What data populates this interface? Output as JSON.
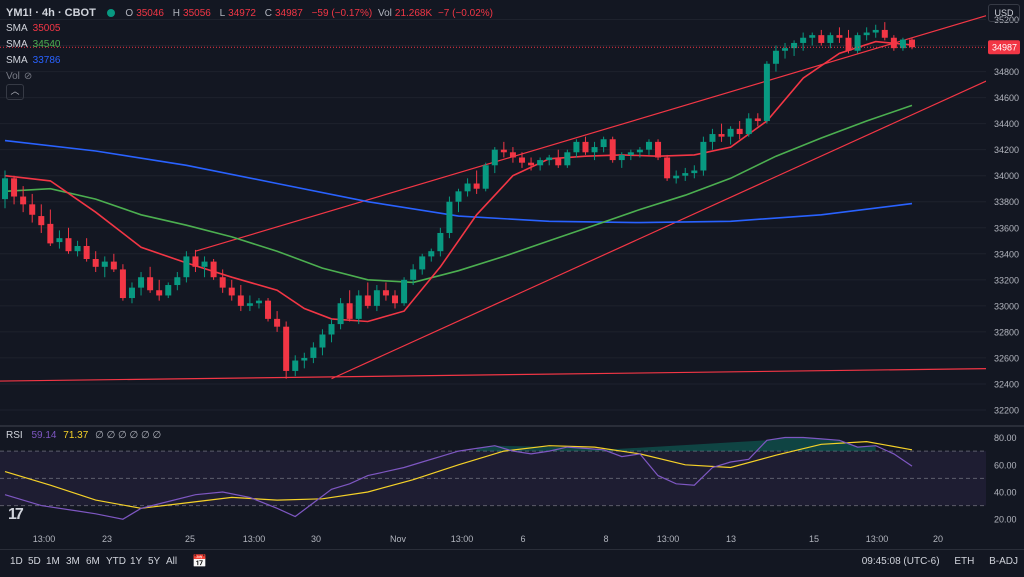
{
  "header": {
    "symbol_title": "YM1! · 4h · CBOT",
    "ohlc": [
      {
        "label": "O",
        "value": "35046"
      },
      {
        "label": "H",
        "value": "35056"
      },
      {
        "label": "L",
        "value": "34972"
      },
      {
        "label": "C",
        "value": "34987"
      }
    ],
    "change": "−59 (−0.17%)",
    "volume_label": "Vol",
    "volume_value": "21.268K",
    "volume_change": "−7 (−0.02%)",
    "collapse_icon": "chevron-up-icon"
  },
  "indicators": [
    {
      "label": "SMA",
      "value": "35005",
      "color": "#f23645"
    },
    {
      "label": "SMA",
      "value": "34540",
      "color": "#4caf50"
    },
    {
      "label": "SMA",
      "value": "33786",
      "color": "#2962ff"
    }
  ],
  "vol_row": {
    "label": "Vol",
    "icon": "eye-off-icon"
  },
  "currency_button": "USD",
  "price_tag": "34987",
  "rsi": {
    "label": "RSI",
    "value1": "59.14",
    "value2": "71.37",
    "extra": "∅ ∅ ∅ ∅ ∅ ∅",
    "axis_ticks": [
      "80.00",
      "60.00",
      "40.00",
      "20.00"
    ],
    "upper_band": 70,
    "lower_band": 30,
    "mid": 50
  },
  "time_labels": [
    "13:00",
    "23",
    "25",
    "13:00",
    "30",
    "Nov",
    "13:00",
    "6",
    "8",
    "13:00",
    "13",
    "15",
    "13:00",
    "20"
  ],
  "bottom_bar": {
    "ranges": [
      "1D",
      "5D",
      "1M",
      "3M",
      "6M",
      "YTD",
      "1Y",
      "5Y",
      "All"
    ],
    "calendar_icon": "calendar-icon",
    "time": "09:45:08 (UTC-6)",
    "session": "ETH",
    "adjust": "B-ADJ"
  },
  "chart_data": {
    "type": "candlestick",
    "y_ticks": [
      "35200",
      "35000",
      "34800",
      "34600",
      "34400",
      "34200",
      "34000",
      "33800",
      "33600",
      "33400",
      "33200",
      "33000",
      "32800",
      "32600",
      "32400",
      "32200"
    ],
    "ylim": [
      32100,
      35350
    ],
    "colors": {
      "up": "#089981",
      "down": "#f23645",
      "sma1": "#f23645",
      "sma2": "#4caf50",
      "sma3": "#2962ff",
      "trend": "#f23645",
      "rsi": "#7e57c2",
      "rsi_ma": "#f5d128"
    },
    "candles": [
      [
        0,
        33820,
        34040,
        33750,
        33980
      ],
      [
        1,
        33980,
        34000,
        33780,
        33840
      ],
      [
        2,
        33840,
        33920,
        33720,
        33780
      ],
      [
        3,
        33780,
        33860,
        33640,
        33700
      ],
      [
        4,
        33690,
        33780,
        33560,
        33620
      ],
      [
        5,
        33630,
        33740,
        33460,
        33480
      ],
      [
        6,
        33490,
        33580,
        33440,
        33520
      ],
      [
        7,
        33520,
        33600,
        33400,
        33420
      ],
      [
        8,
        33420,
        33500,
        33380,
        33460
      ],
      [
        9,
        33460,
        33520,
        33340,
        33360
      ],
      [
        10,
        33360,
        33420,
        33260,
        33300
      ],
      [
        11,
        33300,
        33380,
        33220,
        33340
      ],
      [
        12,
        33340,
        33400,
        33260,
        33280
      ],
      [
        13,
        33280,
        33320,
        33040,
        33060
      ],
      [
        14,
        33060,
        33180,
        33020,
        33140
      ],
      [
        15,
        33140,
        33260,
        33080,
        33220
      ],
      [
        16,
        33220,
        33300,
        33100,
        33120
      ],
      [
        17,
        33120,
        33200,
        33040,
        33080
      ],
      [
        18,
        33080,
        33180,
        33060,
        33160
      ],
      [
        19,
        33160,
        33260,
        33120,
        33220
      ],
      [
        20,
        33220,
        33420,
        33180,
        33380
      ],
      [
        21,
        33380,
        33430,
        33260,
        33300
      ],
      [
        22,
        33300,
        33380,
        33220,
        33340
      ],
      [
        23,
        33340,
        33360,
        33200,
        33220
      ],
      [
        24,
        33220,
        33280,
        33100,
        33140
      ],
      [
        25,
        33140,
        33200,
        33040,
        33080
      ],
      [
        26,
        33080,
        33160,
        32960,
        33000
      ],
      [
        27,
        33000,
        33080,
        32960,
        33020
      ],
      [
        28,
        33020,
        33060,
        32980,
        33040
      ],
      [
        29,
        33040,
        33060,
        32880,
        32900
      ],
      [
        30,
        32900,
        32960,
        32800,
        32840
      ],
      [
        31,
        32840,
        32880,
        32440,
        32500
      ],
      [
        32,
        32500,
        32620,
        32460,
        32580
      ],
      [
        33,
        32580,
        32640,
        32520,
        32600
      ],
      [
        34,
        32600,
        32720,
        32560,
        32680
      ],
      [
        35,
        32680,
        32820,
        32620,
        32780
      ],
      [
        36,
        32780,
        32900,
        32720,
        32860
      ],
      [
        37,
        32860,
        33060,
        32820,
        33020
      ],
      [
        38,
        33020,
        33120,
        32880,
        32900
      ],
      [
        39,
        32900,
        33120,
        32860,
        33080
      ],
      [
        40,
        33080,
        33180,
        32980,
        33000
      ],
      [
        41,
        33000,
        33160,
        32960,
        33120
      ],
      [
        42,
        33120,
        33180,
        33040,
        33080
      ],
      [
        43,
        33080,
        33120,
        32980,
        33020
      ],
      [
        44,
        33020,
        33220,
        33000,
        33200
      ],
      [
        45,
        33200,
        33320,
        33160,
        33280
      ],
      [
        46,
        33280,
        33400,
        33240,
        33380
      ],
      [
        47,
        33380,
        33440,
        33340,
        33420
      ],
      [
        48,
        33420,
        33600,
        33380,
        33560
      ],
      [
        49,
        33560,
        33840,
        33520,
        33800
      ],
      [
        50,
        33800,
        33900,
        33720,
        33880
      ],
      [
        51,
        33880,
        33980,
        33840,
        33940
      ],
      [
        52,
        33940,
        34040,
        33860,
        33900
      ],
      [
        53,
        33900,
        34100,
        33880,
        34080
      ],
      [
        54,
        34080,
        34220,
        34020,
        34200
      ],
      [
        55,
        34200,
        34260,
        34140,
        34180
      ],
      [
        56,
        34180,
        34220,
        34100,
        34140
      ],
      [
        57,
        34140,
        34180,
        34060,
        34100
      ],
      [
        58,
        34100,
        34140,
        34040,
        34080
      ],
      [
        59,
        34080,
        34140,
        34040,
        34120
      ],
      [
        60,
        34120,
        34160,
        34080,
        34140
      ],
      [
        61,
        34140,
        34200,
        34060,
        34080
      ],
      [
        62,
        34080,
        34200,
        34060,
        34180
      ],
      [
        63,
        34180,
        34280,
        34140,
        34260
      ],
      [
        64,
        34260,
        34300,
        34160,
        34180
      ],
      [
        65,
        34180,
        34260,
        34120,
        34220
      ],
      [
        66,
        34220,
        34300,
        34180,
        34280
      ],
      [
        67,
        34280,
        34300,
        34100,
        34120
      ],
      [
        68,
        34120,
        34180,
        34060,
        34160
      ],
      [
        69,
        34160,
        34200,
        34120,
        34180
      ],
      [
        70,
        34180,
        34220,
        34140,
        34200
      ],
      [
        71,
        34200,
        34280,
        34160,
        34260
      ],
      [
        72,
        34260,
        34280,
        34120,
        34140
      ],
      [
        73,
        34140,
        34160,
        33960,
        33980
      ],
      [
        74,
        33980,
        34040,
        33940,
        34000
      ],
      [
        75,
        34000,
        34060,
        33960,
        34020
      ],
      [
        76,
        34020,
        34080,
        33980,
        34040
      ],
      [
        77,
        34040,
        34300,
        34000,
        34260
      ],
      [
        78,
        34260,
        34360,
        34200,
        34320
      ],
      [
        79,
        34320,
        34400,
        34260,
        34300
      ],
      [
        80,
        34300,
        34380,
        34240,
        34360
      ],
      [
        81,
        34360,
        34420,
        34280,
        34320
      ],
      [
        82,
        34320,
        34480,
        34300,
        34440
      ],
      [
        83,
        34440,
        34480,
        34380,
        34420
      ],
      [
        84,
        34420,
        34880,
        34400,
        34860
      ],
      [
        85,
        34860,
        35000,
        34800,
        34960
      ],
      [
        86,
        34960,
        35020,
        34900,
        34980
      ],
      [
        87,
        34980,
        35040,
        34920,
        35020
      ],
      [
        88,
        35020,
        35100,
        34960,
        35060
      ],
      [
        89,
        35060,
        35100,
        35000,
        35080
      ],
      [
        90,
        35080,
        35120,
        35000,
        35020
      ],
      [
        91,
        35020,
        35100,
        34980,
        35080
      ],
      [
        92,
        35080,
        35140,
        35020,
        35060
      ],
      [
        93,
        35060,
        35120,
        34940,
        34960
      ],
      [
        94,
        34960,
        35100,
        34940,
        35080
      ],
      [
        95,
        35080,
        35140,
        35040,
        35100
      ],
      [
        96,
        35100,
        35160,
        35060,
        35120
      ],
      [
        97,
        35120,
        35180,
        35040,
        35060
      ],
      [
        98,
        35060,
        35080,
        34960,
        34980
      ],
      [
        99,
        34980,
        35060,
        34960,
        35046
      ],
      [
        100,
        35046,
        35056,
        34972,
        34987
      ]
    ],
    "sma_fast": [
      [
        0,
        34000
      ],
      [
        5,
        33960
      ],
      [
        10,
        33720
      ],
      [
        15,
        33450
      ],
      [
        20,
        33330
      ],
      [
        25,
        33220
      ],
      [
        30,
        33120
      ],
      [
        33,
        32980
      ],
      [
        36,
        32900
      ],
      [
        40,
        32880
      ],
      [
        44,
        32960
      ],
      [
        48,
        33300
      ],
      [
        52,
        33700
      ],
      [
        56,
        34000
      ],
      [
        60,
        34130
      ],
      [
        64,
        34150
      ],
      [
        68,
        34160
      ],
      [
        72,
        34150
      ],
      [
        76,
        34160
      ],
      [
        80,
        34220
      ],
      [
        84,
        34420
      ],
      [
        88,
        34750
      ],
      [
        92,
        34940
      ],
      [
        96,
        35030
      ],
      [
        100,
        35005
      ]
    ],
    "sma_mid": [
      [
        0,
        33880
      ],
      [
        5,
        33900
      ],
      [
        10,
        33820
      ],
      [
        15,
        33700
      ],
      [
        20,
        33620
      ],
      [
        25,
        33530
      ],
      [
        30,
        33420
      ],
      [
        35,
        33290
      ],
      [
        40,
        33200
      ],
      [
        45,
        33180
      ],
      [
        50,
        33270
      ],
      [
        55,
        33380
      ],
      [
        60,
        33500
      ],
      [
        65,
        33620
      ],
      [
        70,
        33740
      ],
      [
        75,
        33850
      ],
      [
        80,
        33980
      ],
      [
        85,
        34150
      ],
      [
        90,
        34290
      ],
      [
        95,
        34420
      ],
      [
        100,
        34540
      ]
    ],
    "sma_slow": [
      [
        0,
        34270
      ],
      [
        10,
        34190
      ],
      [
        20,
        34080
      ],
      [
        30,
        33940
      ],
      [
        40,
        33800
      ],
      [
        50,
        33690
      ],
      [
        60,
        33650
      ],
      [
        70,
        33640
      ],
      [
        80,
        33650
      ],
      [
        90,
        33700
      ],
      [
        100,
        33786
      ]
    ],
    "trendlines": [
      [
        [
          21,
          33420
        ],
        [
          113,
          35330
        ]
      ],
      [
        [
          36,
          32440
        ],
        [
          113,
          34880
        ]
      ],
      [
        [
          -3,
          32420
        ],
        [
          122,
          32530
        ]
      ]
    ],
    "rsi_series": [
      [
        0,
        38
      ],
      [
        4,
        30
      ],
      [
        8,
        26
      ],
      [
        10,
        24
      ],
      [
        13,
        20
      ],
      [
        15,
        28
      ],
      [
        18,
        33
      ],
      [
        21,
        38
      ],
      [
        24,
        40
      ],
      [
        27,
        36
      ],
      [
        30,
        28
      ],
      [
        32,
        22
      ],
      [
        34,
        32
      ],
      [
        36,
        42
      ],
      [
        38,
        46
      ],
      [
        40,
        52
      ],
      [
        42,
        55
      ],
      [
        44,
        58
      ],
      [
        46,
        62
      ],
      [
        48,
        66
      ],
      [
        50,
        70
      ],
      [
        52,
        72
      ],
      [
        54,
        74
      ],
      [
        56,
        70
      ],
      [
        58,
        68
      ],
      [
        60,
        70
      ],
      [
        62,
        73
      ],
      [
        64,
        72
      ],
      [
        66,
        71
      ],
      [
        68,
        66
      ],
      [
        70,
        68
      ],
      [
        72,
        52
      ],
      [
        74,
        46
      ],
      [
        76,
        45
      ],
      [
        78,
        58
      ],
      [
        80,
        62
      ],
      [
        82,
        64
      ],
      [
        84,
        78
      ],
      [
        86,
        80
      ],
      [
        88,
        80
      ],
      [
        90,
        79
      ],
      [
        92,
        78
      ],
      [
        94,
        73
      ],
      [
        96,
        74
      ],
      [
        98,
        68
      ],
      [
        100,
        59
      ]
    ],
    "rsi_ma": [
      [
        0,
        55
      ],
      [
        5,
        45
      ],
      [
        10,
        34
      ],
      [
        15,
        28
      ],
      [
        20,
        32
      ],
      [
        25,
        36
      ],
      [
        30,
        34
      ],
      [
        35,
        35
      ],
      [
        40,
        40
      ],
      [
        45,
        49
      ],
      [
        50,
        60
      ],
      [
        55,
        70
      ],
      [
        60,
        74
      ],
      [
        65,
        73
      ],
      [
        70,
        68
      ],
      [
        75,
        60
      ],
      [
        80,
        58
      ],
      [
        85,
        67
      ],
      [
        90,
        75
      ],
      [
        95,
        77
      ],
      [
        100,
        71
      ]
    ],
    "rsi_ylim": [
      15,
      87
    ]
  }
}
